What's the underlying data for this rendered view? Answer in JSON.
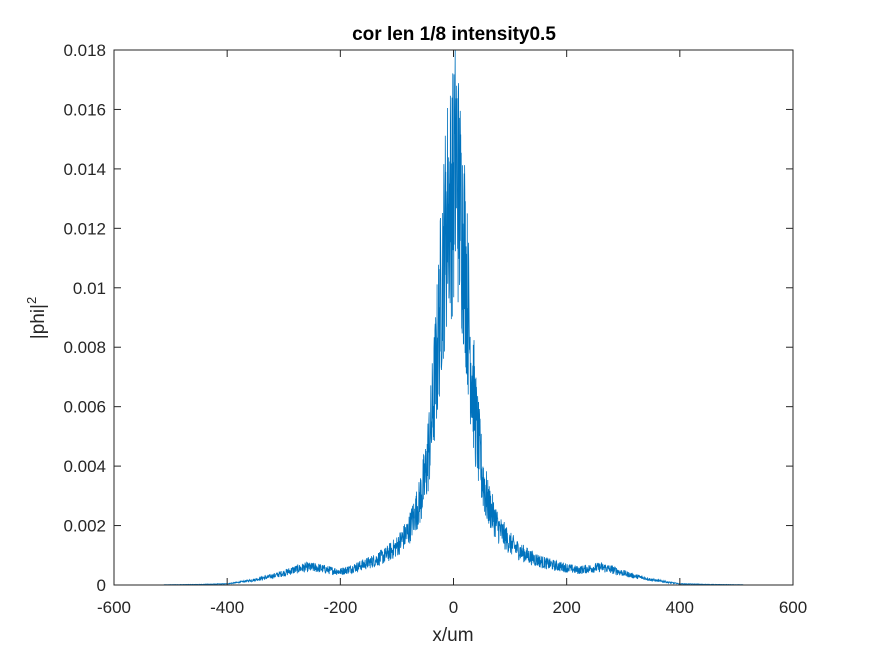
{
  "chart_data": {
    "type": "line",
    "title": "cor len 1/8 intensity0.5",
    "xlabel": "x/um",
    "ylabel_base": "|phi|",
    "ylabel_exponent": "2",
    "xlim": [
      -600,
      600
    ],
    "ylim": [
      0,
      0.018
    ],
    "xticks": [
      -600,
      -400,
      -200,
      0,
      200,
      400,
      600
    ],
    "xtick_labels": [
      "-600",
      "-400",
      "-200",
      "0",
      "200",
      "400",
      "600"
    ],
    "yticks": [
      0,
      0.002,
      0.004,
      0.006,
      0.008,
      0.01,
      0.012,
      0.014,
      0.016,
      0.018
    ],
    "ytick_labels": [
      "0",
      "0.002",
      "0.004",
      "0.006",
      "0.008",
      "0.01",
      "0.012",
      "0.014",
      "0.016",
      "0.018"
    ],
    "grid": false,
    "box": true,
    "line_color": "#0072BD",
    "axis_color": "#262626",
    "series": [
      {
        "x": [
          -512,
          -450,
          -400,
          -380,
          -350,
          -320,
          -300,
          -280,
          -260,
          -240,
          -220,
          -200,
          -180,
          -160,
          -140,
          -120,
          -100,
          -80,
          -60,
          -50,
          -40,
          -30,
          -20,
          -10,
          0,
          5,
          10,
          20,
          30,
          40,
          50,
          60,
          80,
          100,
          120,
          140,
          160,
          180,
          200,
          220,
          240,
          260,
          280,
          300,
          320,
          350,
          380,
          400,
          450,
          512
        ],
        "y": [
          1e-05,
          2e-05,
          4e-05,
          9e-05,
          0.00018,
          0.0003,
          0.0004,
          0.00052,
          0.0006,
          0.00058,
          0.0005,
          0.00045,
          0.00055,
          0.00068,
          0.00082,
          0.001,
          0.0013,
          0.0018,
          0.0028,
          0.0036,
          0.0052,
          0.0075,
          0.0105,
          0.0128,
          0.0133,
          0.0145,
          0.013,
          0.0112,
          0.0078,
          0.0054,
          0.0038,
          0.0028,
          0.0019,
          0.0014,
          0.0011,
          0.0009,
          0.00075,
          0.00065,
          0.00058,
          0.0005,
          0.00055,
          0.0006,
          0.00052,
          0.0004,
          0.0003,
          0.00018,
          9e-05,
          4e-05,
          2e-05,
          1e-05
        ]
      }
    ]
  }
}
